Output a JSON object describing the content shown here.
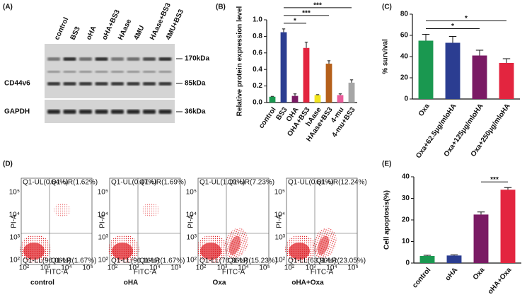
{
  "blot": {
    "label": "(A)",
    "lanes": [
      "control",
      "BS3",
      "oHA",
      "oHA+BS3",
      "HAase",
      "4MU",
      "HAase+BS3",
      "4MU+BS3"
    ],
    "rows": [
      "CD44v6",
      "GAPDH"
    ],
    "markers": [
      "170kDa",
      "85kDa",
      "36kDa"
    ]
  },
  "flow": {
    "label": "(D)",
    "x_label": "FITC-A",
    "y_label": "PI-A",
    "x_ticks": [
      "10²",
      "10³",
      "10⁴",
      "10⁵"
    ],
    "y_ticks": [
      "10²",
      "10³",
      "10⁴",
      "10⁵"
    ],
    "plots": [
      {
        "name": "control",
        "quadrants": {
          "UL": "Q1-UL(0.64%)",
          "UR": "Q1-UR(1.62%)",
          "LL": "Q1-LL(96.06%)",
          "LR": "Q1-LR(1.67%)"
        }
      },
      {
        "name": "oHA",
        "quadrants": {
          "UL": "Q1-UL(0.47%)",
          "UR": "Q1-UR(1.69%)",
          "LL": "Q1-LL(96.16%)",
          "LR": "Q1-LR(1.67%)"
        }
      },
      {
        "name": "Oxa",
        "quadrants": {
          "UL": "Q1-UL(1.19%)",
          "UR": "Q1-UR(7.23%)",
          "LL": "Q1-LL(76.36%)",
          "LR": "Q1-LR(15.23%)"
        }
      },
      {
        "name": "oHA+Oxa",
        "quadrants": {
          "UL": "Q1-UL(0.61%)",
          "UR": "Q1-UR(12.24%)",
          "LL": "Q1-LL(63.90%)",
          "LR": "Q1-LR(23.05%)"
        }
      }
    ]
  },
  "chart_data": [
    {
      "type": "bar",
      "label": "(B)",
      "y_label": "Relative protein expression level",
      "categories": [
        "control",
        "BS3",
        "OHA",
        "OHA+BS3",
        "hAase",
        "HAase+BS3",
        "4-mu",
        "4-mu+BS3"
      ],
      "values": [
        0.07,
        0.85,
        0.08,
        0.66,
        0.09,
        0.47,
        0.09,
        0.24
      ],
      "errors": [
        0.005,
        0.04,
        0.025,
        0.07,
        0.005,
        0.035,
        0.015,
        0.035
      ],
      "colors": [
        "#1a9850",
        "#2b3d91",
        "#7a1a64",
        "#e3253f",
        "#f2e51e",
        "#b5601b",
        "#ea5c9a",
        "#a6a6a6"
      ],
      "ylim": [
        0,
        1.0
      ],
      "yticks": [
        {
          "value": 0,
          "label": "0.0"
        },
        0.2,
        0.4,
        0.6,
        0.8,
        {
          "value": 1.0,
          "label": "1.0"
        }
      ],
      "brackets": [
        {
          "between": [
            "BS3",
            "OHA+BS3"
          ],
          "label": "*"
        },
        {
          "between": [
            "BS3",
            "HAase+BS3"
          ],
          "label": "***"
        },
        {
          "between": [
            "BS3",
            "4-mu+BS3"
          ],
          "label": "***"
        }
      ]
    },
    {
      "type": "bar",
      "label": "(C)",
      "y_label": "% survival",
      "categories": [
        "Oxa",
        "Oxa+62.5μg/mloHA",
        "Oxa+125μg/mloHA",
        "Oxa+250μg/mloHA"
      ],
      "values": [
        55,
        53,
        41,
        34
      ],
      "errors": [
        6,
        6,
        5,
        4
      ],
      "colors": [
        "#1a9850",
        "#2b3d91",
        "#7a1a64",
        "#e3253f"
      ],
      "ylim": [
        0,
        80
      ],
      "yticks": [
        0,
        20,
        40,
        60,
        80
      ],
      "brackets": [
        {
          "between": [
            "Oxa",
            "Oxa+125μg/mloHA"
          ],
          "label": "*"
        },
        {
          "between": [
            "Oxa",
            "Oxa+250μg/mloHA"
          ],
          "label": "*"
        }
      ]
    },
    {
      "type": "bar",
      "label": "(E)",
      "y_label": "Cell apoptosis(%)",
      "categories": [
        "control",
        "oHA",
        "Oxa",
        "oHA+Oxa"
      ],
      "values": [
        3.3,
        3.5,
        22.5,
        34
      ],
      "errors": [
        0.3,
        0.3,
        1.2,
        1.0
      ],
      "colors": [
        "#1a9850",
        "#2b3d91",
        "#7a1a64",
        "#e3253f"
      ],
      "ylim": [
        0,
        40
      ],
      "yticks": [
        0,
        10,
        20,
        30,
        40
      ],
      "brackets": [
        {
          "between": [
            "Oxa",
            "oHA+Oxa"
          ],
          "label": "***"
        }
      ]
    }
  ]
}
